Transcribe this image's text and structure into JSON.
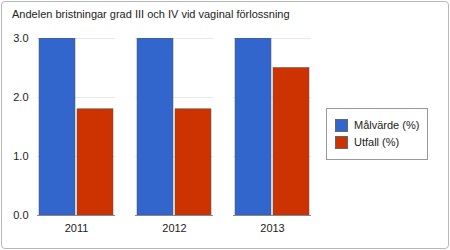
{
  "chart_data": {
    "type": "bar",
    "title": "Andelen bristningar grad III och IV vid vaginal förlossning",
    "categories": [
      "2011",
      "2012",
      "2013"
    ],
    "series": [
      {
        "name": "Målvärde (%)",
        "color": "#3366cc",
        "values": [
          3,
          3,
          3
        ]
      },
      {
        "name": "Utfall (%)",
        "color": "#cc3300",
        "values": [
          1.8,
          1.8,
          2.5
        ]
      }
    ],
    "ylim": [
      0,
      3
    ],
    "yticks": [
      0,
      1,
      2,
      3
    ],
    "grid": true,
    "legend": "right"
  }
}
